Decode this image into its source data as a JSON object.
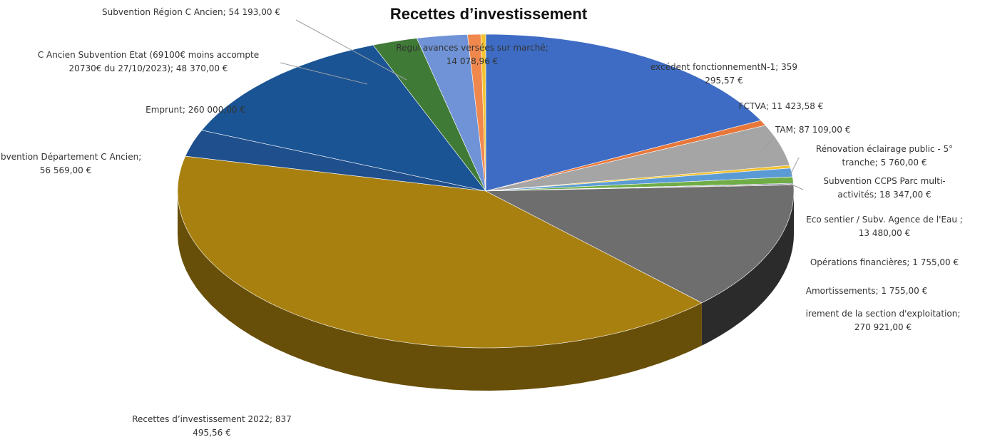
{
  "chart_data": {
    "type": "pie",
    "title": "Recettes d’investissement",
    "slices": [
      {
        "label": [
          "excédent fonctionnementN-1; 359",
          "295,57 €"
        ],
        "value": 359295.57,
        "color": "#3e6cc4"
      },
      {
        "label": [
          "FCTVA; 11 423,58 €"
        ],
        "value": 11423.58,
        "color": "#e8773a"
      },
      {
        "label": [
          "TAM; 87 109,00 €"
        ],
        "value": 87109.0,
        "color": "#a5a5a5"
      },
      {
        "label": [
          "Rénovation éclairage public - 5°",
          "tranche; 5 760,00 €"
        ],
        "value": 5760.0,
        "color": "#f2c12e"
      },
      {
        "label": [
          "Subvention CCPS  Parc multi-",
          "activités; 18 347,00 €"
        ],
        "value": 18347.0,
        "color": "#5b9bd5"
      },
      {
        "label": [
          "Eco sentier / Subv. Agence de l'Eau ;",
          "13 480,00 €"
        ],
        "value": 13480.0,
        "color": "#70ad47"
      },
      {
        "label": [
          "Opérations financières; 1 755,00 €"
        ],
        "value": 1755.0,
        "color": "#2f5597"
      },
      {
        "label": [
          "Amortissements; 1 755,00 €"
        ],
        "value": 1755.0,
        "color": "#9e4a1e"
      },
      {
        "label": [
          "irement de la section d'exploitation;",
          "270 921,00 €"
        ],
        "value": 270921.0,
        "color": "#6e6e6e"
      },
      {
        "label": [
          "Recettes d’investissement 2022; 837",
          "495,56 €"
        ],
        "value": 837495.56,
        "color": "#a8800f"
      },
      {
        "label": [
          "Subvention Département C Ancien;",
          "56 569,00 €"
        ],
        "value": 56569.0,
        "color": "#1f4f8c"
      },
      {
        "label": [
          "Emprunt; 260 000,00 €"
        ],
        "value": 260000.0,
        "color": "#1a5494"
      },
      {
        "label": [
          "C Ancien Subvention Etat (69100€ moins accompte",
          "20730€ du 27/10/2023); 48 370,00 €"
        ],
        "value": 48370.0,
        "color": "#3f7a36"
      },
      {
        "label": [
          "Subvention Région C Ancien; 54 193,00 €"
        ],
        "value": 54193.0,
        "color": "#6f93d6"
      },
      {
        "label": [
          "Regul avances versées sur marché;",
          "14 078,96 €"
        ],
        "value": 14078.96,
        "color": "#f0884e"
      },
      {
        "label": [],
        "value": 5200.0,
        "color": "#f4c430"
      }
    ]
  }
}
